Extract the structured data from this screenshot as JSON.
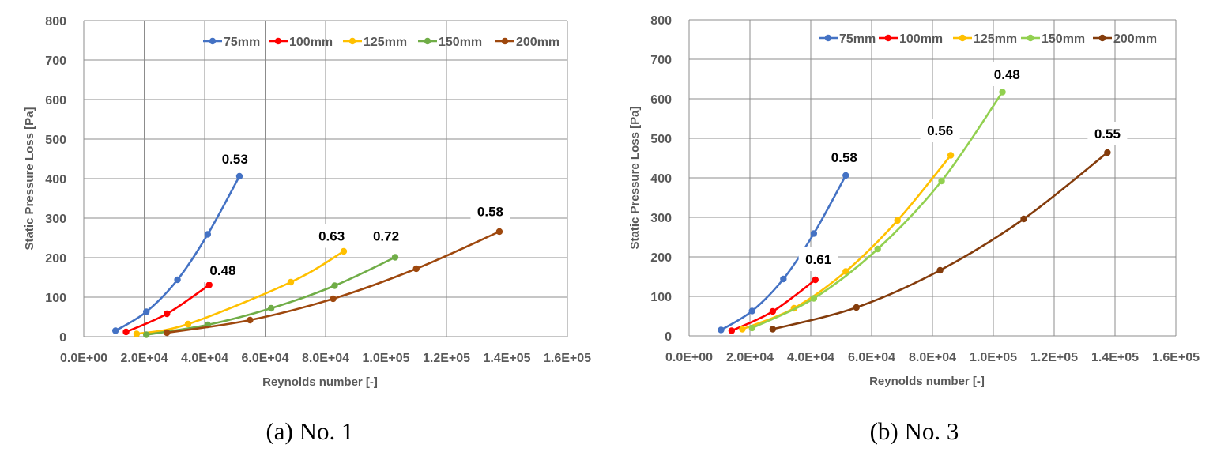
{
  "chart_data": [
    {
      "type": "line",
      "title": "",
      "xlabel": "Reynolds number [-]",
      "ylabel": "Static Pressure Loss [Pa]",
      "xlim": [
        0,
        160000
      ],
      "ylim": [
        0,
        800
      ],
      "x_ticks": [
        "0.0E+00",
        "2.0E+04",
        "4.0E+04",
        "6.0E+04",
        "8.0E+04",
        "1.0E+05",
        "1.2E+05",
        "1.4E+05",
        "1.6E+05"
      ],
      "y_ticks": [
        "0",
        "100",
        "200",
        "300",
        "400",
        "500",
        "600",
        "700",
        "800"
      ],
      "grid": true,
      "legend_position": "top-right",
      "caption": "(a) No. 1",
      "series": [
        {
          "name": "75mm",
          "color": "#4472C4",
          "x": [
            10500,
            20700,
            31000,
            41000,
            51500
          ],
          "y": [
            15,
            63,
            144,
            259,
            406
          ]
        },
        {
          "name": "100mm",
          "color": "#FF0000",
          "x": [
            14000,
            27500,
            41500
          ],
          "y": [
            12,
            58,
            131
          ]
        },
        {
          "name": "125mm",
          "color": "#FFC000",
          "x": [
            17500,
            34500,
            68500,
            86000
          ],
          "y": [
            7,
            32,
            138,
            216
          ]
        },
        {
          "name": "150mm",
          "color": "#70AD47",
          "x": [
            20700,
            41000,
            62000,
            83000,
            103000
          ],
          "y": [
            5,
            30,
            72,
            129,
            201
          ]
        },
        {
          "name": "200mm",
          "color": "#9E480E",
          "x": [
            27500,
            55000,
            82500,
            110000,
            137500
          ],
          "y": [
            10,
            42,
            96,
            172,
            266
          ]
        }
      ],
      "annotations": [
        {
          "text": "0.53",
          "x": 50000,
          "y": 450
        },
        {
          "text": "0.48",
          "x": 46000,
          "y": 168
        },
        {
          "text": "0.63",
          "x": 82000,
          "y": 255
        },
        {
          "text": "0.72",
          "x": 100000,
          "y": 255
        },
        {
          "text": "0.58",
          "x": 134500,
          "y": 317
        }
      ]
    },
    {
      "type": "line",
      "title": "",
      "xlabel": "Reynolds number [-]",
      "ylabel": "Static Pressure Loss [Pa]",
      "xlim": [
        0,
        160000
      ],
      "ylim": [
        0,
        800
      ],
      "x_ticks": [
        "0.0E+00",
        "2.0E+04",
        "4.0E+04",
        "6.0E+04",
        "8.0E+04",
        "1.0E+05",
        "1.2E+05",
        "1.4E+05",
        "1.6E+05"
      ],
      "y_ticks": [
        "0",
        "100",
        "200",
        "300",
        "400",
        "500",
        "600",
        "700",
        "800"
      ],
      "grid": true,
      "legend_position": "top-right",
      "caption": "(b) No. 3",
      "series": [
        {
          "name": "75mm",
          "color": "#4472C4",
          "x": [
            10500,
            20700,
            31000,
            41000,
            51500
          ],
          "y": [
            15,
            63,
            144,
            259,
            406
          ]
        },
        {
          "name": "100mm",
          "color": "#FF0000",
          "x": [
            14000,
            27500,
            41500
          ],
          "y": [
            13,
            62,
            142
          ]
        },
        {
          "name": "125mm",
          "color": "#FFC000",
          "x": [
            17500,
            34500,
            51500,
            68500,
            86000
          ],
          "y": [
            17,
            70,
            163,
            292,
            457
          ]
        },
        {
          "name": "150mm",
          "color": "#92D050",
          "x": [
            20700,
            41000,
            62000,
            83000,
            103000
          ],
          "y": [
            20,
            95,
            220,
            392,
            617
          ]
        },
        {
          "name": "200mm",
          "color": "#843C0C",
          "x": [
            27500,
            55000,
            82500,
            110000,
            137500
          ],
          "y": [
            17,
            72,
            166,
            296,
            464
          ]
        }
      ],
      "annotations": [
        {
          "text": "0.58",
          "x": 51000,
          "y": 452
        },
        {
          "text": "0.61",
          "x": 42500,
          "y": 194
        },
        {
          "text": "0.56",
          "x": 82500,
          "y": 520
        },
        {
          "text": "0.48",
          "x": 104500,
          "y": 662
        },
        {
          "text": "0.55",
          "x": 137500,
          "y": 512
        }
      ]
    }
  ]
}
